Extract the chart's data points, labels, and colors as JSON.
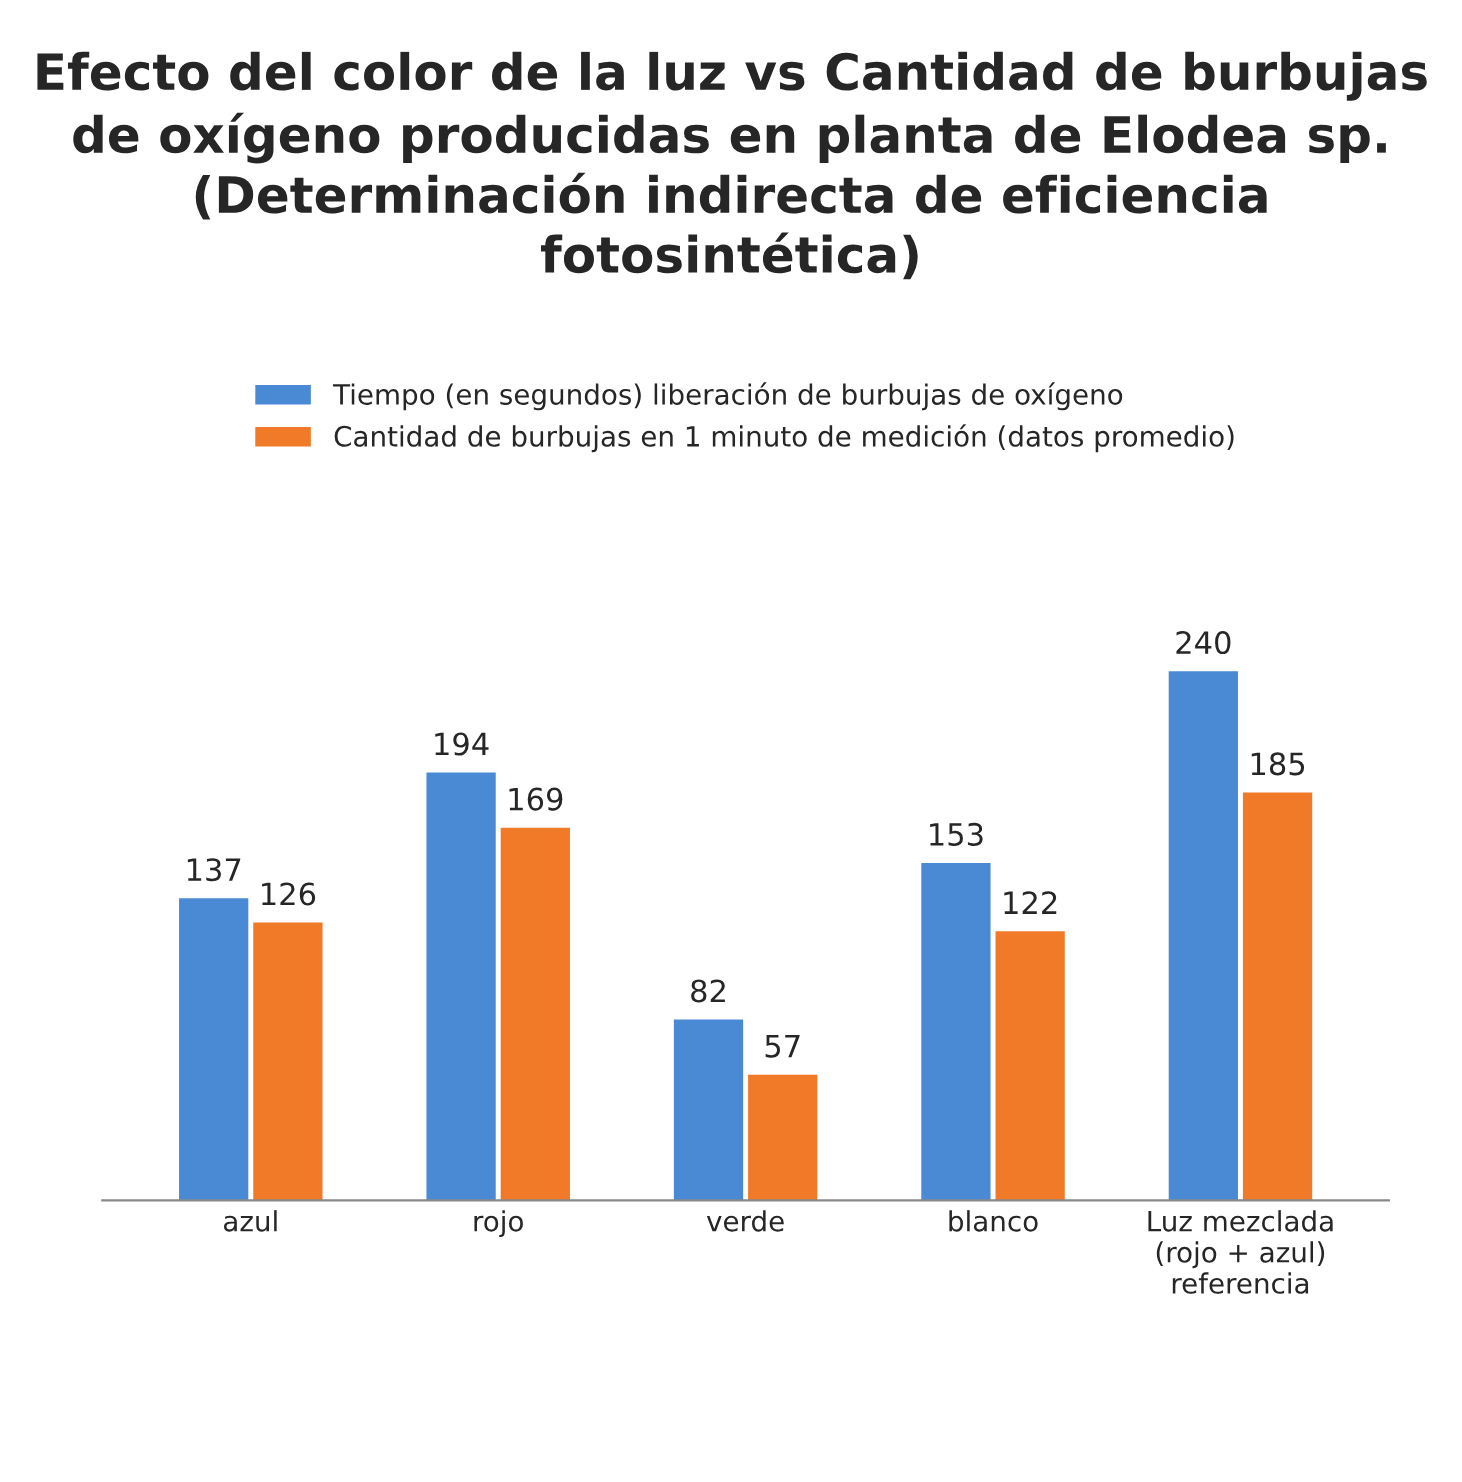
{
  "chart_data": {
    "type": "bar",
    "title": "Efecto del color de la luz vs Cantidad de burbujas de oxígeno producidas en planta de Elodea sp.\n(Determinación indirecta de eficiencia fotosintética)",
    "categories": [
      "azul",
      "rojo",
      "verde",
      "blanco",
      "Luz mezclada\n(rojo + azul)\nreferencia"
    ],
    "series": [
      {
        "name": "Tiempo (en segundos) liberación de burbujas de oxígeno",
        "color": "#4a8ad4",
        "values": [
          137,
          194,
          82,
          153,
          240
        ]
      },
      {
        "name": "Cantidad de burbujas en 1 minuto de medición (datos promedio)",
        "color": "#f07a28",
        "values": [
          126,
          169,
          57,
          122,
          185
        ]
      }
    ],
    "data_labels": true,
    "legend": "top",
    "grid": false
  }
}
